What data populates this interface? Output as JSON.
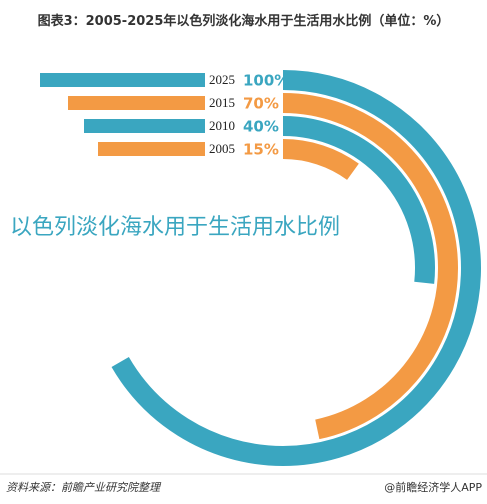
{
  "chart_data": {
    "type": "radial-bar",
    "title": "图表3：2005-2025年以色列淡化海水用于生活用水比例（单位：%）",
    "annotation": "以色列淡化海水用于生活用水比例",
    "source": "资料来源：前瞻产业研究院整理",
    "credit": "@前瞻经济学人APP",
    "categories": [
      "2025",
      "2015",
      "2010",
      "2005"
    ],
    "values": [
      100,
      70,
      40,
      15
    ],
    "value_labels": [
      "100%",
      "70%",
      "40%",
      "15%"
    ],
    "colors": [
      "#3aa6c0",
      "#f39a44",
      "#3aa6c0",
      "#f39a44"
    ],
    "vlim": [
      0,
      100
    ]
  }
}
